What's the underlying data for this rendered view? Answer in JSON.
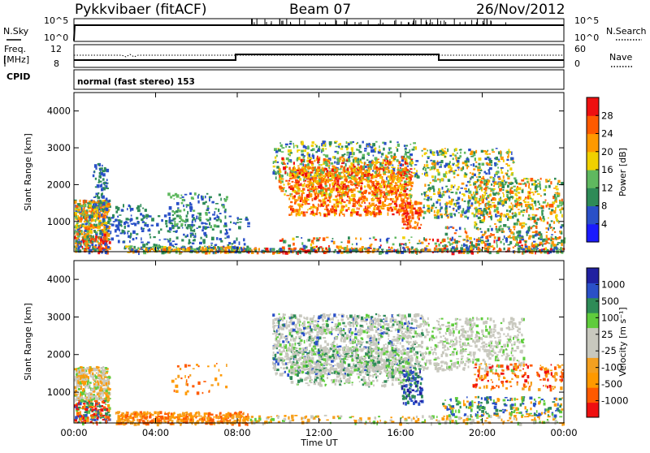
{
  "header": {
    "title": "Pykkvibaer (fitACF)",
    "beam": "Beam 07",
    "date": "26/Nov/2012"
  },
  "panels": {
    "nsky_label": "N.Sky",
    "nsearch_label": "N.Search",
    "freq_label_line1": "Freq.",
    "freq_label_line2": "[MHz]",
    "nave_label": "Nave",
    "cpid_label": "CPID",
    "cpid_text": "normal (fast stereo) 153",
    "noise_left_ticks": [
      "10^5",
      "10^0"
    ],
    "noise_right_ticks": [
      "10^5",
      "10^0"
    ],
    "freq_left_ticks": [
      "12",
      "8"
    ],
    "freq_right_ticks": [
      "60",
      "0"
    ]
  },
  "colors": {
    "power_scale": [
      "#1a1aff",
      "#2a50c8",
      "#2e8b57",
      "#5fb85f",
      "#f0d000",
      "#ff9900",
      "#ff5a00",
      "#ee1010"
    ],
    "velocity_scale": [
      "#ee1010",
      "#ff5a00",
      "#ff9900",
      "#f4a020",
      "#c8c8be",
      "#c8c8be",
      "#5fcc3c",
      "#2e8b57",
      "#2a50c8",
      "#2020a0"
    ]
  },
  "chart_data": [
    {
      "type": "heatmap",
      "name_text": "Power",
      "xlabel": "",
      "ylabel": "Slant Range [km]",
      "x_range_hours": [
        0,
        24
      ],
      "ylim": [
        180,
        4500
      ],
      "y_ticks": [
        "4000",
        "3000",
        "2000",
        "1000"
      ],
      "colorbar_label": "Power [dB]",
      "colorbar_ticks": [
        "28",
        "24",
        "20",
        "16",
        "12",
        "8",
        "4"
      ],
      "colorbar_range": [
        0,
        30
      ]
    },
    {
      "type": "heatmap",
      "xlabel": "Time UT",
      "ylabel": "Slant Range [km]",
      "x_range_hours": [
        0,
        24
      ],
      "ylim": [
        180,
        4500
      ],
      "y_ticks": [
        "4000",
        "3000",
        "2000",
        "1000"
      ],
      "x_ticks": [
        "00:00",
        "04:00",
        "08:00",
        "12:00",
        "16:00",
        "20:00",
        "00:00"
      ],
      "colorbar_label": "Velocity [m s⁻¹]",
      "colorbar_ticks": [
        "1000",
        "500",
        "100",
        "25",
        "-25",
        "-100",
        "-500",
        "-1000"
      ]
    }
  ]
}
